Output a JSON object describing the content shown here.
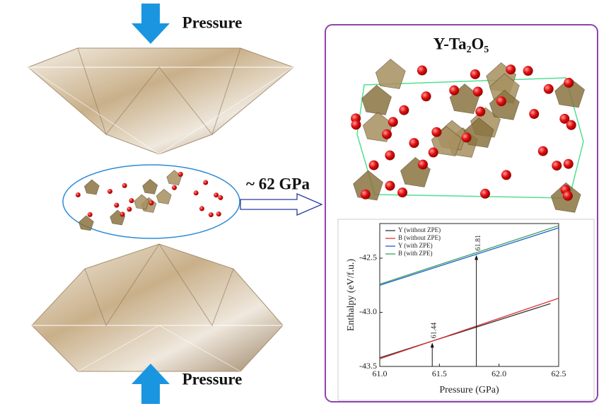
{
  "labels": {
    "pressure_top": "Pressure",
    "pressure_bottom": "Pressure",
    "transition": "~ 62 GPa",
    "structure_title": "Y-Ta₂O₅"
  },
  "chart_data": {
    "type": "line",
    "x_label": "Pressure (GPa)",
    "y_label": "Enthalpy (eV/f.u.)",
    "series": [
      {
        "name": "Y (without ZPE)",
        "color": "#333333",
        "x": [
          61.0,
          62.43
        ],
        "values": [
          -43.42,
          -42.92
        ]
      },
      {
        "name": "B (without ZPE)",
        "color": "#e03030",
        "x": [
          61.0,
          62.5
        ],
        "values": [
          -43.43,
          -42.87
        ]
      },
      {
        "name": "Y (with ZPE)",
        "color": "#2060d0",
        "x": [
          61.0,
          62.5
        ],
        "values": [
          -42.75,
          -42.22
        ]
      },
      {
        "name": "B (with ZPE)",
        "color": "#3aa060",
        "x": [
          61.0,
          62.5
        ],
        "values": [
          -42.74,
          -42.2
        ]
      }
    ],
    "annotations": [
      {
        "label": "61.44",
        "x": 61.44,
        "y": -43.28
      },
      {
        "label": "61.81",
        "x": 61.81,
        "y": -42.47
      }
    ],
    "xlim": [
      61.0,
      62.5
    ],
    "xticks": [
      {
        "value": 61.0,
        "label": "61.0"
      },
      61.5,
      {
        "value": 62.0,
        "label": "62.0"
      },
      62.5
    ],
    "ylim": [
      -43.5,
      -42.18
    ],
    "yticks": [
      -43.5,
      {
        "value": -43.0,
        "label": "-43.0"
      },
      -42.5
    ],
    "legend": "upper left",
    "grid": false
  }
}
